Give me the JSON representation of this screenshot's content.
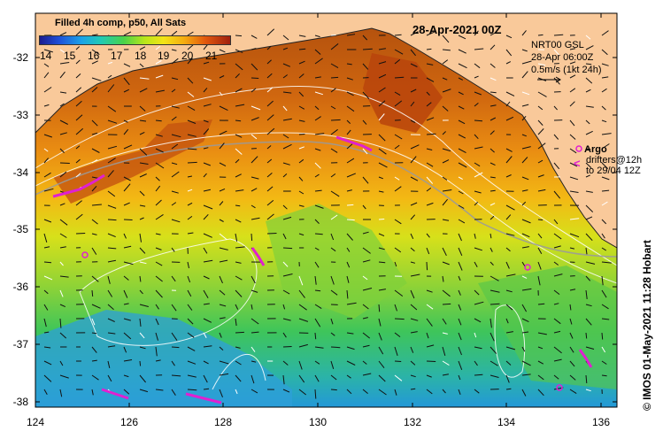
{
  "map": {
    "date_title": "28-Apr-2021 00Z",
    "product_title": "Filled 4h comp, p50, All Sats",
    "colorbar_ticks": [
      "14",
      "15",
      "16",
      "17",
      "18",
      "19",
      "20",
      "21"
    ],
    "colorbar_range": [
      13.5,
      21.5
    ],
    "lat_ticks": [
      "-32",
      "-33",
      "-34",
      "-35",
      "-36",
      "-37",
      "-38"
    ],
    "lon_ticks": [
      "124",
      "126",
      "128",
      "130",
      "132",
      "134",
      "136"
    ],
    "lat_range": [
      -38.1,
      -31.3
    ],
    "lon_range": [
      124,
      136.5
    ],
    "current_info": {
      "line1": "NRT00 GSL",
      "line2": "28-Apr 06:00Z",
      "line3": "0.5m/s (1kt 24h)"
    },
    "argo": {
      "label": "Argo",
      "drifters_line1": "drifters@12h",
      "drifters_line2": "to 29/04 12Z"
    },
    "side_credit": "© IMOS 01-May-2021 11:28 Hobart",
    "colors": {
      "land": "#f9c99a",
      "argo_magenta": "#e020d0",
      "warm_sst": "#d9661a",
      "cool_sst": "#2a9fe0"
    }
  }
}
